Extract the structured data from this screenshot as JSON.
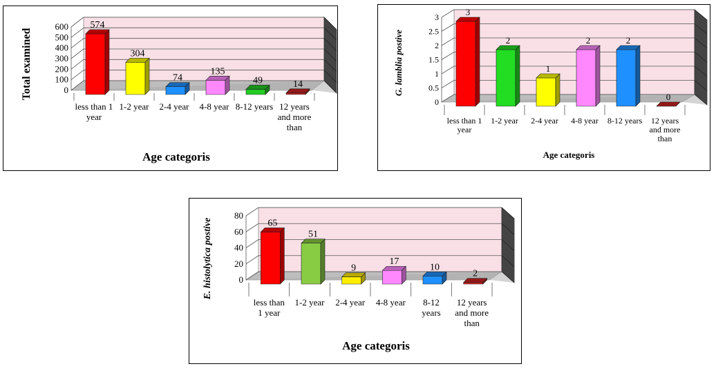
{
  "chart_data": [
    {
      "type": "bar",
      "categories": [
        "less than 1 year",
        "1-2 year",
        "2-4 year",
        "4-8 year",
        "8-12 years",
        "12 years and more than"
      ],
      "category_lines": [
        [
          "less than 1",
          "year"
        ],
        [
          "1-2 year"
        ],
        [
          "2-4 year"
        ],
        [
          "4-8 year"
        ],
        [
          "8-12 years"
        ],
        [
          "12 years",
          "and more",
          "than"
        ]
      ],
      "values": [
        574,
        304,
        74,
        135,
        49,
        14
      ],
      "value_labels": [
        "574",
        "304",
        "74",
        "135",
        "49",
        "14"
      ],
      "colors": [
        "#ff0000",
        "#ffff00",
        "#1e90ff",
        "#ff88ff",
        "#22cc22",
        "#cc2222"
      ],
      "ylim": [
        0,
        600
      ],
      "yticks": [
        0,
        100,
        200,
        300,
        400,
        500,
        600
      ],
      "ylabel": "Total examined",
      "ylabel_style": "bold",
      "xlabel": "Age categoris",
      "title": "",
      "grid": true,
      "style": "3d"
    },
    {
      "type": "bar",
      "categories": [
        "less than 1 year",
        "1-2 year",
        "2-4 year",
        "4-8 year",
        "8-12 years",
        "12 years and more than"
      ],
      "category_lines": [
        [
          "less than 1",
          "year"
        ],
        [
          "1-2 year"
        ],
        [
          "2-4 year"
        ],
        [
          "4-8 year"
        ],
        [
          "8-12 years"
        ],
        [
          "12 years",
          "and more",
          "than"
        ]
      ],
      "values": [
        3,
        2,
        1,
        2,
        2,
        0
      ],
      "value_labels": [
        "3",
        "2",
        "1",
        "2",
        "2",
        "0"
      ],
      "colors": [
        "#ff0000",
        "#22dd22",
        "#ffff00",
        "#ff88ff",
        "#1e90ff",
        "#cc2222"
      ],
      "ylim": [
        0,
        3
      ],
      "yticks": [
        0,
        0.5,
        1,
        1.5,
        2,
        2.5,
        3
      ],
      "ylabel": "G. lamblia postive",
      "ylabel_style": "italic",
      "xlabel": "Age categoris",
      "title": "",
      "grid": true,
      "style": "3d"
    },
    {
      "type": "bar",
      "categories": [
        "less than 1 year",
        "1-2 year",
        "2-4 year",
        "4-8 year",
        "8-12 years",
        "12 years and more than"
      ],
      "category_lines": [
        [
          "less than",
          "1 year"
        ],
        [
          "1-2 year"
        ],
        [
          "2-4 year"
        ],
        [
          "4-8 year"
        ],
        [
          "8-12",
          "years"
        ],
        [
          "12 years",
          "and more",
          "than"
        ]
      ],
      "values": [
        65,
        51,
        9,
        17,
        10,
        2
      ],
      "value_labels": [
        "65",
        "51",
        "9",
        "17",
        "10",
        "2"
      ],
      "colors": [
        "#ff0000",
        "#88cc44",
        "#ffee00",
        "#ff88ff",
        "#1e90ff",
        "#cc2222"
      ],
      "ylim": [
        0,
        80
      ],
      "yticks": [
        0,
        20,
        40,
        60,
        80
      ],
      "ylabel": "E. histolytica postive",
      "ylabel_style": "italic",
      "xlabel": "Age categoris",
      "title": "",
      "grid": true,
      "style": "3d"
    }
  ]
}
